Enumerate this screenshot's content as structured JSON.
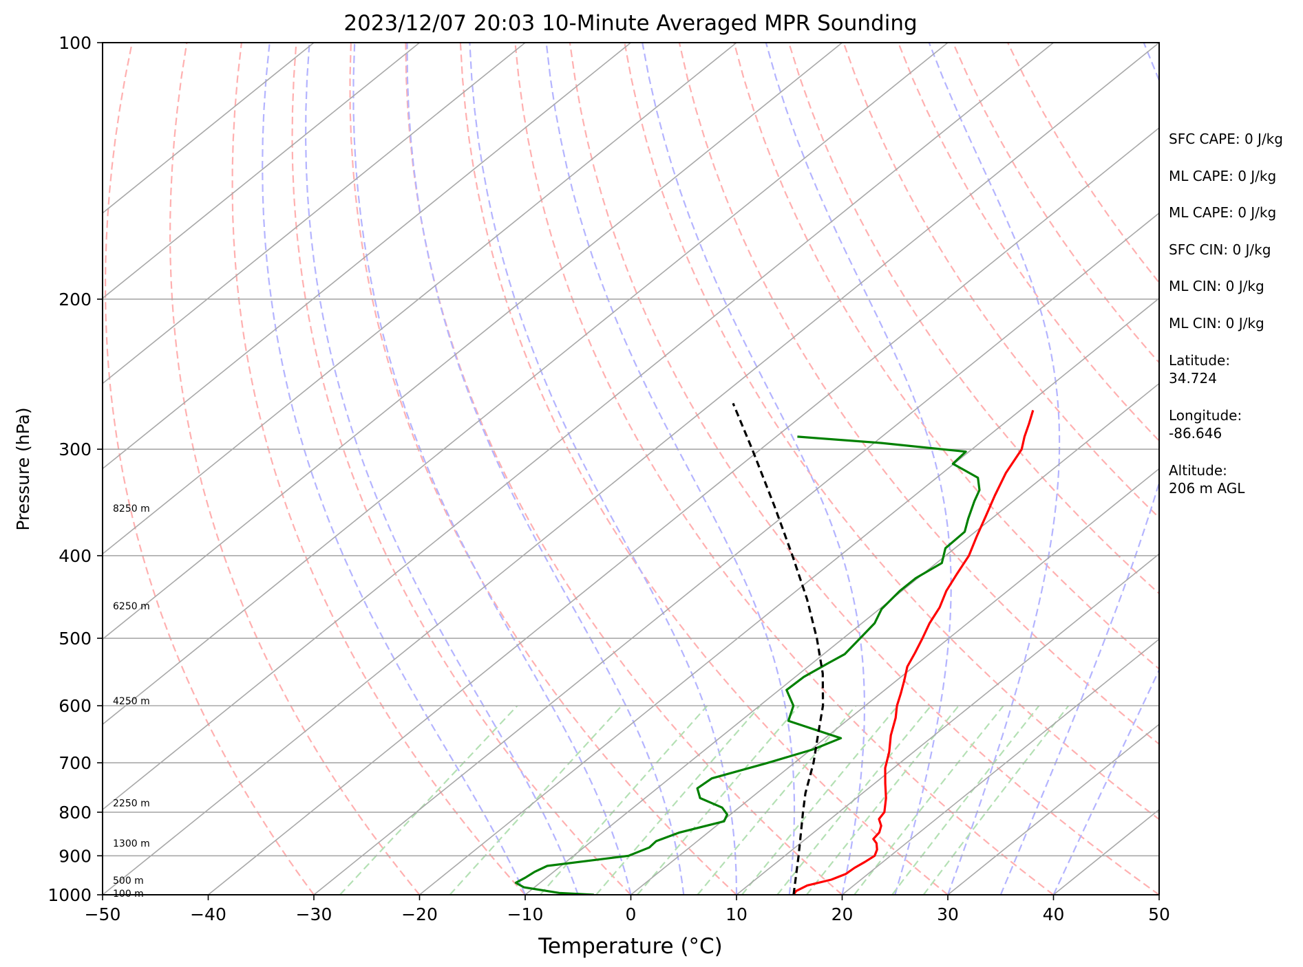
{
  "chart_data": {
    "type": "skew-t",
    "title": "2023/12/07 20:03 10-Minute Averaged MPR Sounding",
    "xlabel": "Temperature (°C)",
    "ylabel": "Pressure (hPa)",
    "xlim": [
      -50,
      50
    ],
    "ylim": [
      1000,
      100
    ],
    "y_scale": "log",
    "x_ticks": [
      "−50",
      "−40",
      "−30",
      "−20",
      "−10",
      "0",
      "10",
      "20",
      "30",
      "40",
      "50"
    ],
    "y_ticks": [
      "100",
      "200",
      "300",
      "400",
      "500",
      "600",
      "700",
      "800",
      "900",
      "1000"
    ],
    "height_labels": [
      {
        "p": 996,
        "text": "100 m"
      },
      {
        "p": 962,
        "text": "500 m"
      },
      {
        "p": 870,
        "text": "1300 m"
      },
      {
        "p": 780,
        "text": "2250 m"
      },
      {
        "p": 592,
        "text": "4250 m"
      },
      {
        "p": 458,
        "text": "6250 m"
      },
      {
        "p": 352,
        "text": "8250 m"
      }
    ],
    "series": [
      {
        "type": "temperature",
        "color": "#ff0000",
        "points": [
          [
            1000,
            15.4
          ],
          [
            990,
            15.2
          ],
          [
            975,
            15.6
          ],
          [
            960,
            17.2
          ],
          [
            945,
            17.9
          ],
          [
            930,
            18.0
          ],
          [
            915,
            18.3
          ],
          [
            900,
            18.5
          ],
          [
            885,
            18.0
          ],
          [
            870,
            17.2
          ],
          [
            860,
            16.4
          ],
          [
            845,
            16.2
          ],
          [
            830,
            15.6
          ],
          [
            815,
            14.6
          ],
          [
            800,
            14.3
          ],
          [
            770,
            12.8
          ],
          [
            740,
            11.0
          ],
          [
            710,
            9.2
          ],
          [
            680,
            7.7
          ],
          [
            650,
            5.9
          ],
          [
            620,
            4.3
          ],
          [
            600,
            3.0
          ],
          [
            580,
            1.9
          ],
          [
            560,
            0.7
          ],
          [
            540,
            -0.6
          ],
          [
            520,
            -1.5
          ],
          [
            500,
            -2.5
          ],
          [
            480,
            -3.6
          ],
          [
            460,
            -4.5
          ],
          [
            440,
            -5.8
          ],
          [
            420,
            -6.8
          ],
          [
            400,
            -7.8
          ],
          [
            380,
            -9.3
          ],
          [
            360,
            -10.8
          ],
          [
            340,
            -12.4
          ],
          [
            320,
            -14.0
          ],
          [
            300,
            -15.3
          ],
          [
            290,
            -16.5
          ],
          [
            280,
            -17.6
          ],
          [
            270,
            -18.8
          ]
        ]
      },
      {
        "type": "dewpoint",
        "color": "#008000",
        "points": [
          [
            1000,
            -3.5
          ],
          [
            995,
            -7.0
          ],
          [
            980,
            -11.0
          ],
          [
            968,
            -12.3
          ],
          [
            955,
            -12.0
          ],
          [
            940,
            -11.8
          ],
          [
            925,
            -11.3
          ],
          [
            900,
            -4.8
          ],
          [
            880,
            -3.8
          ],
          [
            865,
            -3.9
          ],
          [
            845,
            -2.7
          ],
          [
            820,
            0.2
          ],
          [
            805,
            -0.3
          ],
          [
            790,
            -1.6
          ],
          [
            770,
            -4.8
          ],
          [
            750,
            -6.2
          ],
          [
            730,
            -6.0
          ],
          [
            700,
            -2.5
          ],
          [
            675,
            0.2
          ],
          [
            655,
            1.5
          ],
          [
            625,
            -5.5
          ],
          [
            600,
            -6.8
          ],
          [
            575,
            -9.3
          ],
          [
            555,
            -9.2
          ],
          [
            535,
            -8.5
          ],
          [
            522,
            -8.0
          ],
          [
            500,
            -8.4
          ],
          [
            480,
            -8.8
          ],
          [
            462,
            -9.8
          ],
          [
            440,
            -10.2
          ],
          [
            425,
            -10.2
          ],
          [
            408,
            -9.5
          ],
          [
            392,
            -10.9
          ],
          [
            375,
            -11.0
          ],
          [
            362,
            -12.2
          ],
          [
            345,
            -13.7
          ],
          [
            335,
            -14.5
          ],
          [
            324,
            -16.1
          ],
          [
            312,
            -20.1
          ],
          [
            302,
            -20.3
          ],
          [
            295,
            -29.3
          ],
          [
            290,
            -38.0
          ]
        ]
      },
      {
        "type": "parcel",
        "color": "#000000",
        "dashed": true,
        "points": [
          [
            1000,
            15.4
          ],
          [
            900,
            11.3
          ],
          [
            800,
            6.6
          ],
          [
            760,
            4.6
          ],
          [
            700,
            1.8
          ],
          [
            650,
            -1.0
          ],
          [
            600,
            -4.0
          ],
          [
            550,
            -7.8
          ],
          [
            500,
            -12.5
          ],
          [
            450,
            -18.0
          ],
          [
            400,
            -24.5
          ],
          [
            350,
            -32.0
          ],
          [
            300,
            -40.8
          ],
          [
            265,
            -48.0
          ]
        ]
      }
    ],
    "background_lines": {
      "isotherms": {
        "color": "#a8a8a8",
        "from": -130,
        "to": 50,
        "step": 10
      },
      "dry_adiabats": {
        "color": "#ffb0b0",
        "from": -30,
        "to": 130,
        "step": 10
      },
      "moist_adiabats": {
        "color": "#b4b4ff",
        "from": -10,
        "to": 44,
        "step": 5
      },
      "mixing_ratio": {
        "color": "#b4e0b4",
        "values_gkg": [
          0.4,
          1,
          2,
          3,
          4,
          6,
          8,
          10,
          12,
          16,
          20,
          24
        ]
      }
    }
  },
  "stats": [
    {
      "text": "SFC CAPE: 0 J/kg"
    },
    {
      "text": "ML CAPE: 0 J/kg"
    },
    {
      "text": "ML CAPE: 0 J/kg"
    },
    {
      "text": "SFC CIN: 0 J/kg"
    },
    {
      "text": "ML CIN: 0 J/kg"
    },
    {
      "text": "ML CIN: 0 J/kg"
    }
  ],
  "location": {
    "latitude_label": "Latitude:",
    "latitude": "34.724",
    "longitude_label": "Longitude:",
    "longitude": "-86.646",
    "altitude_label": "Altitude:",
    "altitude": "206 m AGL"
  }
}
